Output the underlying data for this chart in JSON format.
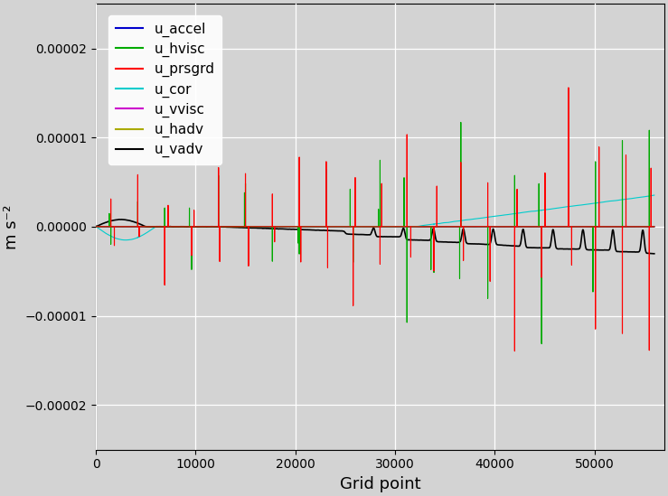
{
  "title": "",
  "xlabel": "Grid point",
  "ylabel": "m s⁻²",
  "xlim": [
    0,
    57000
  ],
  "ylim": [
    -2.5e-05,
    2.5e-05
  ],
  "yticks": [
    -2e-05,
    -1e-05,
    0.0,
    1e-05,
    2e-05
  ],
  "ytick_labels": [
    "−0.00002",
    "−0.00001",
    "0.00000",
    "0.00001",
    "0.00002"
  ],
  "xticks": [
    0,
    10000,
    20000,
    30000,
    40000,
    50000
  ],
  "background_color": "#d3d3d3",
  "outer_background": "#d3d3d3",
  "grid_color": "white",
  "legend_labels": [
    "u_accel",
    "u_hadv",
    "u_vadv",
    "u_cor",
    "u_prsgrd",
    "u_hvisc",
    "u_vvisc"
  ],
  "legend_colors": [
    "#0000cc",
    "#00aa00",
    "#ff0000",
    "#00cccc",
    "#cc00cc",
    "#aaaa00",
    "#000000"
  ],
  "n_points": 56000,
  "seed": 42
}
